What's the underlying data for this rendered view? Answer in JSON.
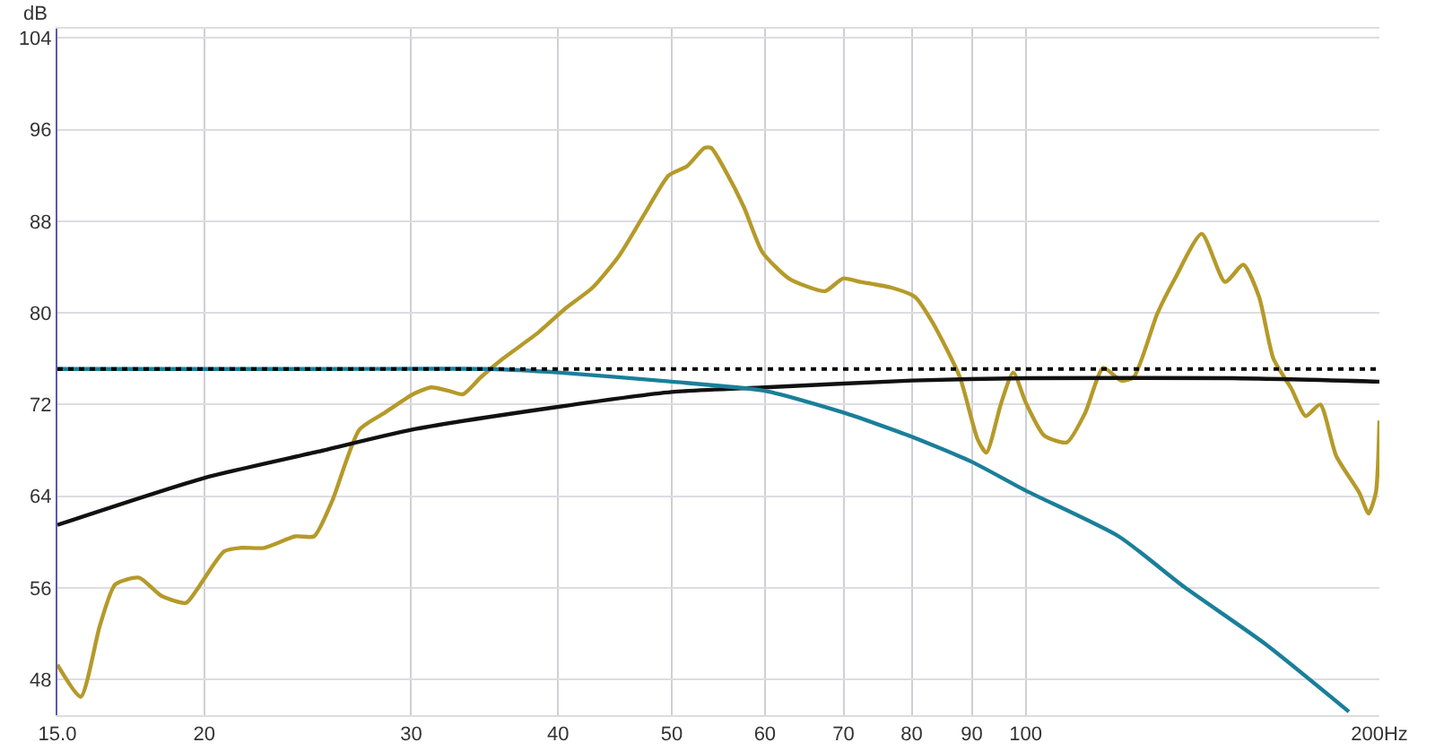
{
  "chart_data": {
    "type": "line",
    "ylabel": "dB",
    "log": "x",
    "grid": true,
    "marker": "none",
    "line_style": "solid",
    "xlim": [
      15,
      200
    ],
    "ylim": [
      44.9,
      104.8
    ],
    "xticks": [
      {
        "value": 15,
        "label": "15.0"
      },
      20,
      30,
      40,
      50,
      60,
      70,
      80,
      90,
      100,
      {
        "value": 200,
        "label": "200Hz"
      }
    ],
    "yticks": [
      48,
      56,
      64,
      72,
      80,
      88,
      96,
      104
    ],
    "ref_lines": [
      {
        "axis": "y",
        "value": 75.1,
        "color": "#000000",
        "line_style": "dotted"
      }
    ],
    "series": [
      {
        "color": "#b59a2a",
        "x": [
          15,
          15.7,
          16.3,
          16.8,
          17.6,
          18.4,
          19.3,
          19.7,
          20.8,
          21.5,
          22.5,
          23.9,
          24.8,
          25.7,
          27.1,
          28.5,
          30.1,
          31.2,
          32.3,
          33.2,
          34.4,
          35.9,
          38.5,
          40.6,
          42.8,
          45.1,
          47.5,
          49.7,
          51.5,
          53.3,
          54,
          55.6,
          57.6,
          59.7,
          62.9,
          67.5,
          69.9,
          72.4,
          76.9,
          80.5,
          83.4,
          87.9,
          91,
          92.6,
          95.3,
          97.6,
          100.1,
          103.7,
          108.4,
          112.4,
          116.4,
          120.6,
          123.6,
          129.4,
          134,
          141.2,
          147.8,
          153.2,
          158,
          162.5,
          168.3,
          173.1,
          178.1,
          183.8,
          192.3,
          195.8,
          198.6,
          200
        ],
        "values": [
          49.3,
          46.5,
          52.7,
          56.3,
          56.9,
          55.3,
          54.7,
          55.8,
          59.2,
          59.5,
          59.5,
          60.5,
          60.5,
          63.6,
          69.8,
          71.3,
          72.9,
          73.5,
          73.2,
          72.9,
          74.4,
          76,
          78.3,
          80.4,
          82.2,
          85,
          88.8,
          92,
          92.8,
          94.4,
          94.4,
          92.3,
          89.2,
          85.3,
          83,
          81.9,
          83,
          82.7,
          82.2,
          81.4,
          79.1,
          74.4,
          69,
          67.8,
          72.1,
          74.8,
          72.1,
          69.3,
          68.7,
          71.3,
          75.2,
          74.1,
          74.4,
          79.9,
          83,
          86.9,
          82.7,
          84.2,
          81.4,
          76,
          73.4,
          71,
          72,
          67.5,
          64.3,
          62.5,
          64.3,
          70.6
        ]
      },
      {
        "color": "#111111",
        "x": [
          15,
          20,
          25,
          30,
          40,
          50,
          60,
          80,
          100,
          150,
          200
        ],
        "values": [
          61.5,
          65.6,
          67.9,
          69.8,
          71.8,
          73.1,
          73.5,
          74.1,
          74.3,
          74.3,
          74
        ]
      },
      {
        "color": "#1a7f9a",
        "x": [
          15,
          25,
          35,
          40,
          50,
          60,
          70,
          80,
          90,
          100,
          120,
          136.4,
          160,
          188.4
        ],
        "values": [
          75.1,
          75.1,
          75.1,
          74.8,
          74,
          73.2,
          71.3,
          69.2,
          67,
          64.5,
          60.5,
          56.1,
          51.1,
          45.2
        ]
      }
    ]
  }
}
